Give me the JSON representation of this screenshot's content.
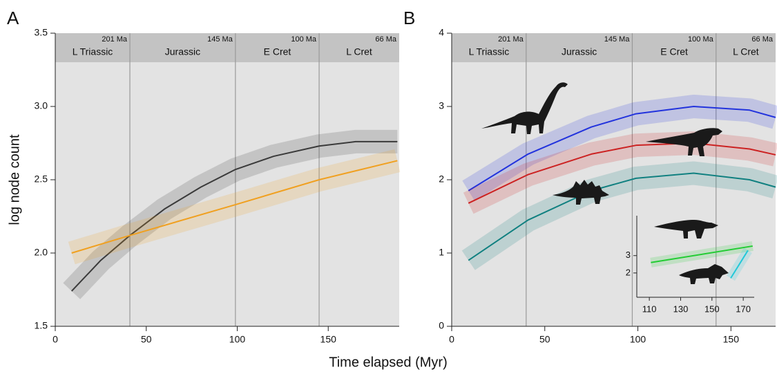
{
  "chart_data": [
    {
      "type": "line",
      "panel": "A",
      "ylabel": "log node count",
      "xlabel": "Time elapsed (Myr)",
      "xlim": [
        0,
        189
      ],
      "ylim": [
        1.5,
        3.5
      ],
      "xticks": [
        0,
        50,
        100,
        150
      ],
      "yticks": [
        {
          "value": 1.5,
          "label": "1.5"
        },
        {
          "value": 2,
          "label": "2.0"
        },
        {
          "value": 2.5,
          "label": "2.5"
        },
        {
          "value": 3,
          "label": "3.0"
        },
        {
          "value": 3.5,
          "label": "3.5"
        }
      ],
      "periods": [
        {
          "name": "L Triassic",
          "end": "201 Ma"
        },
        {
          "name": "Jurassic",
          "end": "145 Ma"
        },
        {
          "name": "E Cret",
          "end": "100 Ma"
        },
        {
          "name": "L Cret",
          "end": "66 Ma"
        }
      ],
      "boundaries": [
        41,
        99,
        145
      ],
      "series": [
        {
          "color": "#3a3a3a",
          "x": [
            9,
            25,
            41,
            60,
            80,
            99,
            120,
            145,
            165,
            188
          ],
          "values": [
            1.74,
            1.95,
            2.12,
            2.3,
            2.45,
            2.57,
            2.66,
            2.73,
            2.76,
            2.76
          ]
        },
        {
          "color": "#f0a020",
          "x": [
            9,
            41,
            99,
            145,
            188
          ],
          "values": [
            2.0,
            2.12,
            2.33,
            2.5,
            2.63
          ]
        }
      ]
    },
    {
      "type": "line",
      "panel": "B",
      "xlim": [
        0,
        174
      ],
      "ylim": [
        0,
        4
      ],
      "xticks": [
        0,
        50,
        100,
        150
      ],
      "yticks": [
        0,
        1,
        2,
        3,
        4
      ],
      "periods": [
        {
          "name": "L Triassic",
          "end": "201 Ma"
        },
        {
          "name": "Jurassic",
          "end": "145 Ma"
        },
        {
          "name": "E Cret",
          "end": "100 Ma"
        },
        {
          "name": "L Cret",
          "end": "66 Ma"
        }
      ],
      "boundaries": [
        40,
        97,
        142
      ],
      "series": [
        {
          "color": "#2233dd",
          "x": [
            9,
            41,
            75,
            99,
            130,
            160,
            174
          ],
          "values": [
            1.85,
            2.35,
            2.72,
            2.9,
            3.0,
            2.95,
            2.85
          ]
        },
        {
          "color": "#cc2222",
          "x": [
            9,
            41,
            75,
            99,
            130,
            160,
            174
          ],
          "values": [
            1.68,
            2.07,
            2.35,
            2.47,
            2.5,
            2.42,
            2.34
          ]
        },
        {
          "color": "#108080",
          "x": [
            9,
            41,
            75,
            99,
            130,
            160,
            174
          ],
          "values": [
            0.9,
            1.45,
            1.85,
            2.02,
            2.09,
            2.0,
            1.9
          ]
        }
      ]
    },
    {
      "type": "line",
      "inset": true,
      "xlim": [
        102,
        177
      ],
      "ylim": [
        0.6,
        5.3
      ],
      "xticks": [
        110,
        130,
        150,
        170
      ],
      "yticks": [
        2,
        3
      ],
      "series": [
        {
          "color": "#22cc33",
          "x": [
            111,
            176
          ],
          "values": [
            2.6,
            3.55
          ]
        },
        {
          "color": "#22c8d8",
          "x": [
            162,
            173
          ],
          "values": [
            1.7,
            3.3
          ]
        }
      ]
    }
  ]
}
